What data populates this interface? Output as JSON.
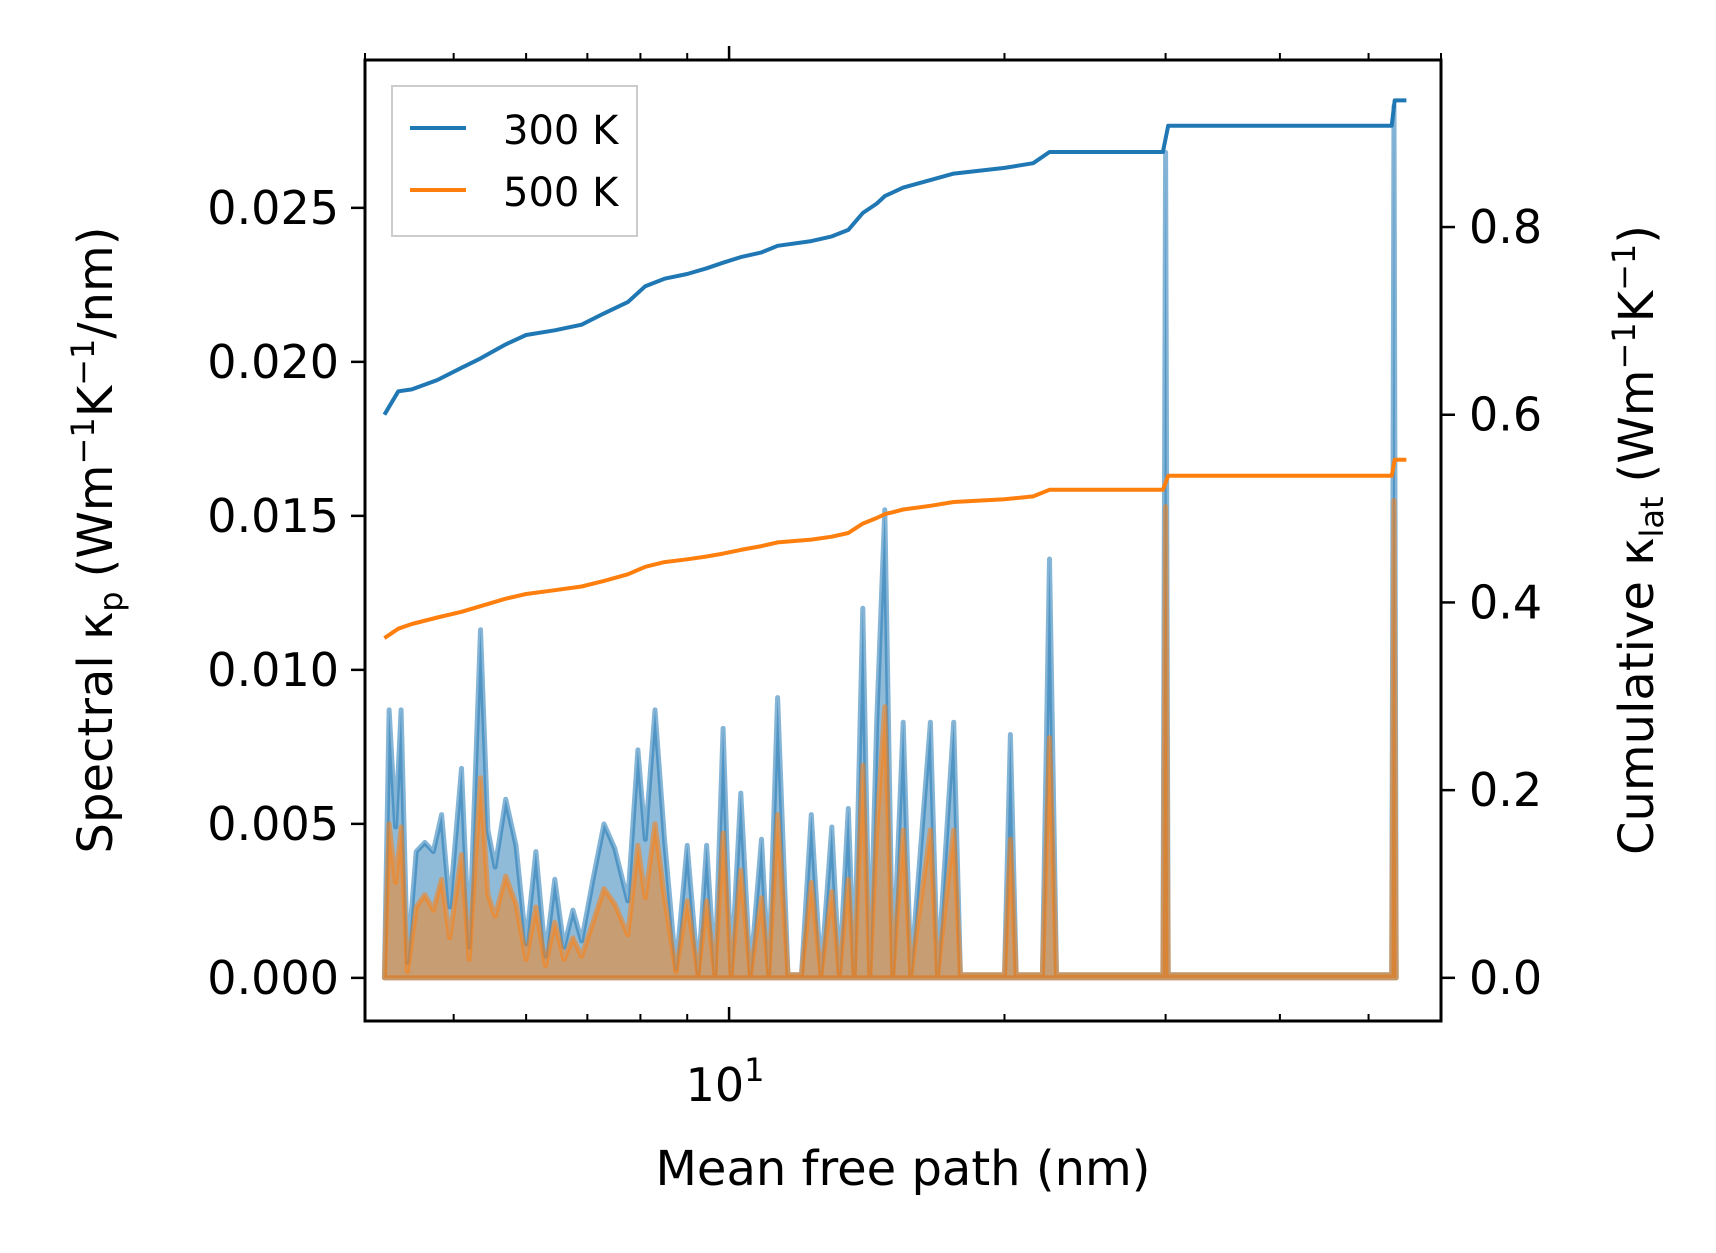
{
  "chart_data": {
    "type": "line",
    "x_scale": "log",
    "xlabel": "Mean free path (nm)",
    "xlim": [
      4.0,
      60.0
    ],
    "x_ticks": [
      {
        "value": 10,
        "base": "10",
        "exp": "1"
      }
    ],
    "left_axis": {
      "label": {
        "main": "Spectral κ",
        "sub": "p",
        "unit": "(Wm",
        "sup1": "−1",
        "mid": "K",
        "sup2": "−1",
        "tail": "/nm)"
      },
      "ylim": [
        -0.0014,
        0.0298
      ],
      "ticks": [
        "0.000",
        "0.005",
        "0.010",
        "0.015",
        "0.020",
        "0.025"
      ]
    },
    "right_axis": {
      "label": {
        "main": "Cumulative κ",
        "sub": "lat",
        "unit": "(Wm",
        "sup1": "−1",
        "mid": "K",
        "sup2": "−1",
        "tail": ")"
      },
      "ylim": [
        -0.046,
        0.978
      ],
      "ticks": [
        "0.0",
        "0.2",
        "0.4",
        "0.6",
        "0.8"
      ]
    },
    "legend": {
      "position": "top-left",
      "entries": [
        "300 K",
        "500 K"
      ]
    },
    "colors": {
      "s300": "#1f77b4",
      "s500": "#ff7f0e",
      "fill300": "#1f77b4",
      "fill500": "#ff7f0e"
    },
    "spectral": {
      "300K": [
        [
          4.2,
          0
        ],
        [
          4.25,
          0.0087
        ],
        [
          4.32,
          0.0049
        ],
        [
          4.38,
          0.0087
        ],
        [
          4.45,
          0.0005
        ],
        [
          4.55,
          0.0041
        ],
        [
          4.65,
          0.0044
        ],
        [
          4.75,
          0.0041
        ],
        [
          4.85,
          0.0053
        ],
        [
          4.95,
          0.0023
        ],
        [
          5.1,
          0.0068
        ],
        [
          5.2,
          0.001
        ],
        [
          5.35,
          0.0113
        ],
        [
          5.45,
          0.0048
        ],
        [
          5.55,
          0.0036
        ],
        [
          5.7,
          0.0058
        ],
        [
          5.85,
          0.0043
        ],
        [
          6.0,
          0.0011
        ],
        [
          6.15,
          0.0041
        ],
        [
          6.3,
          0.0007
        ],
        [
          6.45,
          0.0032
        ],
        [
          6.6,
          0.001
        ],
        [
          6.75,
          0.0022
        ],
        [
          6.9,
          0.0012
        ],
        [
          7.1,
          0.0032
        ],
        [
          7.3,
          0.005
        ],
        [
          7.5,
          0.0042
        ],
        [
          7.75,
          0.0025
        ],
        [
          7.95,
          0.0074
        ],
        [
          8.1,
          0.0045
        ],
        [
          8.3,
          0.0087
        ],
        [
          8.5,
          0.0045
        ],
        [
          8.75,
          0.0003
        ],
        [
          9.0,
          0.0043
        ],
        [
          9.25,
          0.0001
        ],
        [
          9.45,
          0.0043
        ],
        [
          9.65,
          0.0001
        ],
        [
          9.85,
          0.0081
        ],
        [
          10.05,
          0.0001
        ],
        [
          10.3,
          0.006
        ],
        [
          10.55,
          0.0001
        ],
        [
          10.85,
          0.0045
        ],
        [
          11.05,
          0.0001
        ],
        [
          11.3,
          0.0091
        ],
        [
          11.6,
          0.0001
        ],
        [
          12.0,
          0.0001
        ],
        [
          12.3,
          0.0053
        ],
        [
          12.6,
          0.0001
        ],
        [
          12.95,
          0.0049
        ],
        [
          13.2,
          0.0001
        ],
        [
          13.5,
          0.0055
        ],
        [
          13.7,
          0.0001
        ],
        [
          14.0,
          0.012
        ],
        [
          14.25,
          0.0001
        ],
        [
          14.5,
          0.0083
        ],
        [
          14.8,
          0.0152
        ],
        [
          15.1,
          0.0001
        ],
        [
          15.5,
          0.0083
        ],
        [
          15.8,
          0.0001
        ],
        [
          16.6,
          0.0083
        ],
        [
          16.9,
          0.0001
        ],
        [
          17.6,
          0.0083
        ],
        [
          17.9,
          0.0001
        ],
        [
          20.0,
          0.0001
        ],
        [
          20.3,
          0.0079
        ],
        [
          20.6,
          0.0001
        ],
        [
          22.0,
          0.0001
        ],
        [
          22.4,
          0.0136
        ],
        [
          22.8,
          0.0001
        ],
        [
          29.8,
          0.0001
        ],
        [
          30.0,
          0.0268
        ],
        [
          30.2,
          0.0001
        ],
        [
          53.0,
          0.0001
        ],
        [
          53.3,
          0.0283
        ],
        [
          53.6,
          0.0001
        ]
      ],
      "500K": [
        [
          4.2,
          0
        ],
        [
          4.25,
          0.005
        ],
        [
          4.32,
          0.0031
        ],
        [
          4.38,
          0.0049
        ],
        [
          4.45,
          0.0002
        ],
        [
          4.55,
          0.0023
        ],
        [
          4.65,
          0.0027
        ],
        [
          4.75,
          0.0022
        ],
        [
          4.85,
          0.0032
        ],
        [
          4.95,
          0.0013
        ],
        [
          5.1,
          0.004
        ],
        [
          5.2,
          0.0006
        ],
        [
          5.35,
          0.0065
        ],
        [
          5.45,
          0.0027
        ],
        [
          5.55,
          0.002
        ],
        [
          5.7,
          0.0033
        ],
        [
          5.85,
          0.0024
        ],
        [
          6.0,
          0.0006
        ],
        [
          6.15,
          0.0023
        ],
        [
          6.3,
          0.0004
        ],
        [
          6.45,
          0.0018
        ],
        [
          6.6,
          0.0006
        ],
        [
          6.75,
          0.0013
        ],
        [
          6.9,
          0.0007
        ],
        [
          7.1,
          0.0018
        ],
        [
          7.3,
          0.0029
        ],
        [
          7.5,
          0.0024
        ],
        [
          7.75,
          0.0014
        ],
        [
          7.95,
          0.0043
        ],
        [
          8.1,
          0.0026
        ],
        [
          8.3,
          0.005
        ],
        [
          8.5,
          0.0026
        ],
        [
          8.75,
          0.0002
        ],
        [
          9.0,
          0.0025
        ],
        [
          9.25,
          0.0001
        ],
        [
          9.45,
          0.0025
        ],
        [
          9.65,
          0.0001
        ],
        [
          9.85,
          0.0047
        ],
        [
          10.05,
          0.0001
        ],
        [
          10.3,
          0.0035
        ],
        [
          10.55,
          0.0001
        ],
        [
          10.85,
          0.0026
        ],
        [
          11.05,
          0.0001
        ],
        [
          11.3,
          0.0053
        ],
        [
          11.6,
          0.0001
        ],
        [
          12.0,
          0.0001
        ],
        [
          12.3,
          0.0031
        ],
        [
          12.6,
          0.0001
        ],
        [
          12.95,
          0.0028
        ],
        [
          13.2,
          0.0001
        ],
        [
          13.5,
          0.0032
        ],
        [
          13.7,
          0.0001
        ],
        [
          14.0,
          0.0069
        ],
        [
          14.25,
          0.0001
        ],
        [
          14.5,
          0.0048
        ],
        [
          14.8,
          0.0088
        ],
        [
          15.1,
          0.0001
        ],
        [
          15.5,
          0.0048
        ],
        [
          15.8,
          0.0001
        ],
        [
          16.6,
          0.0048
        ],
        [
          16.9,
          0.0001
        ],
        [
          17.6,
          0.0048
        ],
        [
          17.9,
          0.0001
        ],
        [
          20.0,
          0.0001
        ],
        [
          20.3,
          0.0045
        ],
        [
          20.6,
          0.0001
        ],
        [
          22.0,
          0.0001
        ],
        [
          22.4,
          0.0078
        ],
        [
          22.8,
          0.0001
        ],
        [
          29.8,
          0.0001
        ],
        [
          30.0,
          0.0153
        ],
        [
          30.2,
          0.0001
        ],
        [
          53.0,
          0.0001
        ],
        [
          53.3,
          0.0155
        ],
        [
          53.6,
          0.0001
        ]
      ]
    },
    "cumulative": {
      "300K": [
        [
          4.2,
          0.6
        ],
        [
          4.35,
          0.625
        ],
        [
          4.5,
          0.627
        ],
        [
          4.8,
          0.637
        ],
        [
          5.1,
          0.65
        ],
        [
          5.35,
          0.66
        ],
        [
          5.7,
          0.675
        ],
        [
          6.0,
          0.685
        ],
        [
          6.45,
          0.69
        ],
        [
          6.9,
          0.696
        ],
        [
          7.3,
          0.708
        ],
        [
          7.75,
          0.72
        ],
        [
          8.1,
          0.737
        ],
        [
          8.5,
          0.745
        ],
        [
          9.0,
          0.75
        ],
        [
          9.45,
          0.756
        ],
        [
          9.85,
          0.762
        ],
        [
          10.3,
          0.768
        ],
        [
          10.85,
          0.773
        ],
        [
          11.3,
          0.78
        ],
        [
          12.3,
          0.785
        ],
        [
          12.95,
          0.79
        ],
        [
          13.5,
          0.797
        ],
        [
          14.0,
          0.815
        ],
        [
          14.5,
          0.825
        ],
        [
          14.8,
          0.833
        ],
        [
          15.5,
          0.842
        ],
        [
          16.6,
          0.85
        ],
        [
          17.6,
          0.857
        ],
        [
          20.0,
          0.863
        ],
        [
          21.5,
          0.868
        ],
        [
          22.4,
          0.88
        ],
        [
          29.8,
          0.88
        ],
        [
          30.2,
          0.908
        ],
        [
          53.0,
          0.908
        ],
        [
          53.4,
          0.935
        ],
        [
          55.0,
          0.935
        ]
      ],
      "500K": [
        [
          4.2,
          0.362
        ],
        [
          4.35,
          0.372
        ],
        [
          4.5,
          0.377
        ],
        [
          4.8,
          0.384
        ],
        [
          5.1,
          0.39
        ],
        [
          5.35,
          0.396
        ],
        [
          5.7,
          0.404
        ],
        [
          6.0,
          0.409
        ],
        [
          6.45,
          0.413
        ],
        [
          6.9,
          0.417
        ],
        [
          7.3,
          0.423
        ],
        [
          7.75,
          0.43
        ],
        [
          8.1,
          0.438
        ],
        [
          8.5,
          0.443
        ],
        [
          9.0,
          0.446
        ],
        [
          9.45,
          0.449
        ],
        [
          9.85,
          0.452
        ],
        [
          10.3,
          0.456
        ],
        [
          10.85,
          0.46
        ],
        [
          11.3,
          0.464
        ],
        [
          12.3,
          0.467
        ],
        [
          12.95,
          0.47
        ],
        [
          13.5,
          0.474
        ],
        [
          14.0,
          0.484
        ],
        [
          14.5,
          0.49
        ],
        [
          14.8,
          0.494
        ],
        [
          15.5,
          0.499
        ],
        [
          16.6,
          0.503
        ],
        [
          17.6,
          0.507
        ],
        [
          20.0,
          0.51
        ],
        [
          21.5,
          0.513
        ],
        [
          22.4,
          0.52
        ],
        [
          29.8,
          0.52
        ],
        [
          30.2,
          0.535
        ],
        [
          53.0,
          0.535
        ],
        [
          53.4,
          0.552
        ],
        [
          55.0,
          0.552
        ]
      ]
    }
  }
}
